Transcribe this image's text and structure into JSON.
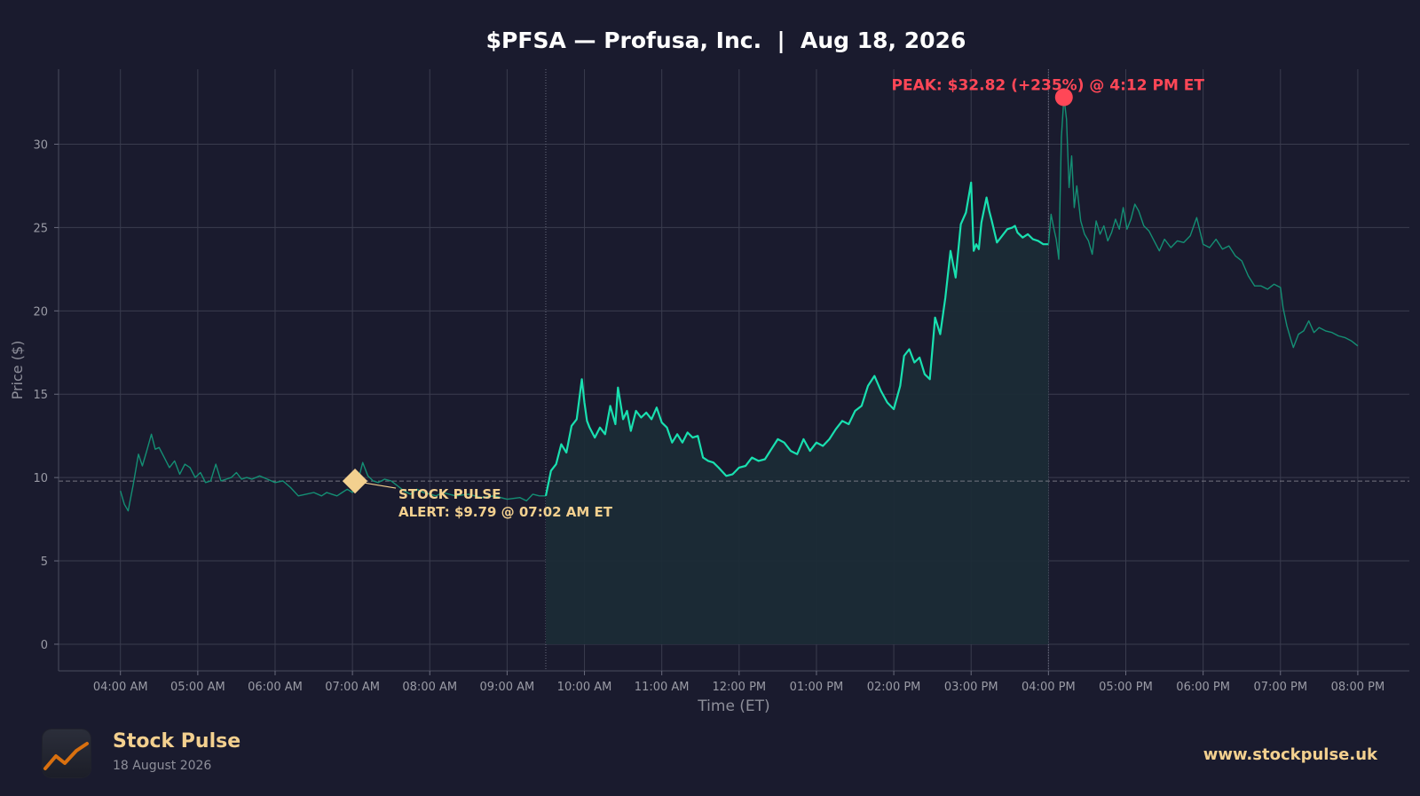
{
  "chart_data": {
    "type": "line",
    "title": "$PFSA — Profusa, Inc.  |  Aug 18, 2026",
    "xlabel": "Time (ET)",
    "ylabel": "Price ($)",
    "ylim": [
      -1.6,
      34.5
    ],
    "yticks": [
      0,
      5,
      10,
      15,
      20,
      25,
      30
    ],
    "xlim": [
      "03:12 AM",
      "08:40 PM"
    ],
    "xtick_labels": [
      "04:00 AM",
      "05:00 AM",
      "06:00 AM",
      "07:00 AM",
      "08:00 AM",
      "09:00 AM",
      "10:00 AM",
      "11:00 AM",
      "12:00 PM",
      "01:00 PM",
      "02:00 PM",
      "03:00 PM",
      "04:00 PM",
      "05:00 PM",
      "06:00 PM",
      "07:00 PM",
      "08:00 PM"
    ],
    "grid": true,
    "session_boundaries": [
      "09:30 AM",
      "04:00 PM"
    ],
    "reference_line": 9.79,
    "colors": {
      "background": "#1a1b2e",
      "line": "#19e0b0",
      "line_dim": "#148f74",
      "fill": "#1b2b36",
      "alert": "#f3d08f",
      "peak": "#ff4757",
      "grid": "#3a3c4e",
      "tick_text": "#9a9ba5",
      "title_text": "#ffffff"
    },
    "series": [
      {
        "session": "pre-market",
        "x": [
          "04:00",
          "04:03",
          "04:06",
          "04:10",
          "04:14",
          "04:17",
          "04:20",
          "04:24",
          "04:27",
          "04:30",
          "04:34",
          "04:38",
          "04:42",
          "04:46",
          "04:50",
          "04:54",
          "04:58",
          "05:02",
          "05:06",
          "05:10",
          "05:14",
          "05:18",
          "05:22",
          "05:26",
          "05:30",
          "05:34",
          "05:38",
          "05:42",
          "05:48",
          "05:54",
          "06:00",
          "06:06",
          "06:12",
          "06:18",
          "06:24",
          "06:30",
          "06:36",
          "06:40",
          "06:44",
          "06:48",
          "06:52",
          "06:56",
          "07:00",
          "07:02",
          "07:05",
          "07:08",
          "07:12",
          "07:16",
          "07:20",
          "07:25",
          "07:30",
          "07:35",
          "07:40",
          "07:45",
          "07:50",
          "07:55",
          "08:00",
          "08:05",
          "08:10",
          "08:20",
          "08:30",
          "08:40",
          "08:50",
          "09:00",
          "09:10",
          "09:15",
          "09:20",
          "09:25",
          "09:30"
        ],
        "y": [
          9.2,
          8.4,
          8.0,
          9.6,
          11.4,
          10.7,
          11.5,
          12.6,
          11.7,
          11.8,
          11.2,
          10.6,
          11.0,
          10.2,
          10.8,
          10.6,
          10.0,
          10.3,
          9.7,
          9.8,
          10.8,
          9.8,
          9.9,
          10.0,
          10.3,
          9.9,
          10.0,
          9.9,
          10.1,
          9.9,
          9.7,
          9.8,
          9.4,
          8.9,
          9.0,
          9.1,
          8.9,
          9.1,
          9.0,
          8.9,
          9.1,
          9.3,
          9.1,
          9.79,
          10.0,
          10.9,
          10.1,
          9.8,
          9.7,
          9.9,
          9.8,
          9.5,
          9.2,
          9.0,
          9.3,
          9.1,
          9.0,
          8.9,
          9.1,
          8.9,
          9.0,
          8.8,
          8.9,
          8.7,
          8.8,
          8.6,
          9.0,
          8.9,
          8.9
        ]
      },
      {
        "session": "regular",
        "x": [
          "09:30",
          "09:34",
          "09:38",
          "09:42",
          "09:46",
          "09:50",
          "09:54",
          "09:58",
          "10:00",
          "10:02",
          "10:04",
          "10:08",
          "10:12",
          "10:16",
          "10:20",
          "10:24",
          "10:26",
          "10:30",
          "10:33",
          "10:36",
          "10:40",
          "10:44",
          "10:48",
          "10:52",
          "10:56",
          "11:00",
          "11:04",
          "11:08",
          "11:12",
          "11:16",
          "11:20",
          "11:24",
          "11:28",
          "11:32",
          "11:36",
          "11:40",
          "11:44",
          "11:50",
          "11:55",
          "12:00",
          "12:05",
          "12:10",
          "12:15",
          "12:20",
          "12:25",
          "12:30",
          "12:35",
          "12:40",
          "12:45",
          "12:50",
          "12:55",
          "13:00",
          "13:05",
          "13:10",
          "13:15",
          "13:20",
          "13:25",
          "13:30",
          "13:35",
          "13:40",
          "13:45",
          "13:50",
          "13:55",
          "14:00",
          "14:05",
          "14:08",
          "14:12",
          "14:16",
          "14:20",
          "14:24",
          "14:28",
          "14:32",
          "14:36",
          "14:40",
          "14:44",
          "14:48",
          "14:52",
          "14:56",
          "15:00",
          "15:02",
          "15:04",
          "15:06",
          "15:08",
          "15:12",
          "15:14",
          "15:16",
          "15:20",
          "15:24",
          "15:28",
          "15:32",
          "15:34",
          "15:36",
          "15:40",
          "15:44",
          "15:48",
          "15:52",
          "15:56",
          "16:00"
        ],
        "y": [
          8.9,
          10.4,
          10.8,
          12.0,
          11.5,
          13.1,
          13.5,
          15.9,
          14.5,
          13.4,
          13.0,
          12.4,
          13.0,
          12.6,
          14.3,
          13.2,
          15.4,
          13.5,
          14.0,
          12.8,
          14.0,
          13.6,
          13.9,
          13.5,
          14.2,
          13.3,
          13.0,
          12.1,
          12.6,
          12.1,
          12.7,
          12.4,
          12.5,
          11.2,
          11.0,
          10.9,
          10.6,
          10.1,
          10.2,
          10.6,
          10.7,
          11.2,
          11.0,
          11.1,
          11.7,
          12.3,
          12.1,
          11.6,
          11.4,
          12.3,
          11.6,
          12.1,
          11.9,
          12.3,
          12.9,
          13.4,
          13.2,
          14.0,
          14.3,
          15.5,
          16.1,
          15.2,
          14.5,
          14.1,
          15.5,
          17.3,
          17.7,
          16.9,
          17.2,
          16.2,
          15.9,
          19.6,
          18.6,
          20.8,
          23.6,
          22.0,
          25.2,
          25.9,
          27.7,
          23.6,
          24.0,
          23.7,
          25.3,
          26.8,
          26.0,
          25.4,
          24.1,
          24.5,
          24.9,
          25.0,
          25.1,
          24.7,
          24.4,
          24.6,
          24.3,
          24.2,
          24.0,
          24.0
        ]
      },
      {
        "session": "after-hours",
        "x": [
          "16:00",
          "16:02",
          "16:04",
          "16:06",
          "16:08",
          "16:10",
          "16:12",
          "16:14",
          "16:16",
          "16:18",
          "16:20",
          "16:22",
          "16:25",
          "16:28",
          "16:31",
          "16:34",
          "16:37",
          "16:40",
          "16:43",
          "16:46",
          "16:49",
          "16:52",
          "16:55",
          "16:58",
          "17:01",
          "17:04",
          "17:07",
          "17:10",
          "17:14",
          "17:18",
          "17:22",
          "17:26",
          "17:30",
          "17:35",
          "17:40",
          "17:45",
          "17:50",
          "17:55",
          "18:00",
          "18:05",
          "18:10",
          "18:15",
          "18:20",
          "18:25",
          "18:30",
          "18:35",
          "18:40",
          "18:45",
          "18:50",
          "18:55",
          "19:00",
          "19:02",
          "19:05",
          "19:08",
          "19:10",
          "19:14",
          "19:18",
          "19:22",
          "19:26",
          "19:30",
          "19:35",
          "19:40",
          "19:45",
          "19:50",
          "19:55",
          "20:00"
        ],
        "y": [
          24.0,
          25.8,
          25.0,
          24.3,
          23.1,
          30.4,
          32.82,
          31.5,
          27.4,
          29.3,
          26.2,
          27.5,
          25.4,
          24.6,
          24.2,
          23.4,
          25.4,
          24.6,
          25.1,
          24.2,
          24.7,
          25.5,
          24.9,
          26.2,
          24.9,
          25.5,
          26.4,
          26.0,
          25.1,
          24.8,
          24.2,
          23.6,
          24.3,
          23.8,
          24.2,
          24.1,
          24.5,
          25.6,
          24.0,
          23.8,
          24.3,
          23.7,
          23.9,
          23.3,
          23.0,
          22.1,
          21.5,
          21.5,
          21.3,
          21.6,
          21.4,
          20.2,
          19.1,
          18.3,
          17.8,
          18.6,
          18.8,
          19.4,
          18.7,
          19.0,
          18.8,
          18.7,
          18.5,
          18.4,
          18.2,
          17.9
        ]
      }
    ],
    "annotations": [
      {
        "kind": "alert",
        "x": "07:02",
        "y": 9.79,
        "line1": "STOCK PULSE",
        "line2": "ALERT: $9.79 @ 07:02 AM ET"
      },
      {
        "kind": "peak",
        "x": "16:12",
        "y": 32.82,
        "text": "PEAK: $32.82 (+235%) @ 4:12 PM ET"
      }
    ]
  },
  "footer": {
    "brand_name": "Stock Pulse",
    "brand_date": "18 August 2026",
    "url": "www.stockpulse.uk"
  }
}
